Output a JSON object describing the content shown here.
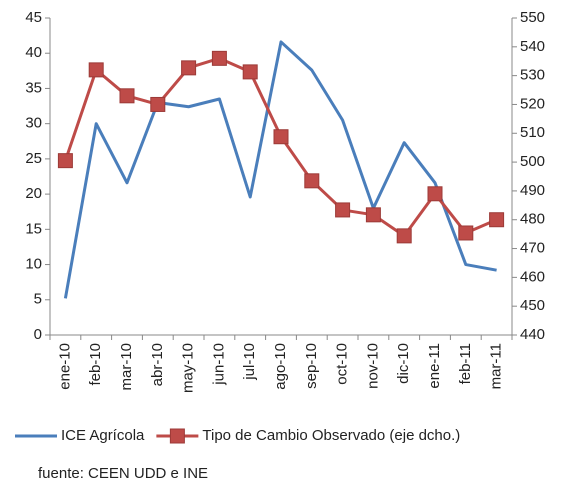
{
  "chart_data": {
    "type": "line",
    "categories": [
      "ene-10",
      "feb-10",
      "mar-10",
      "abr-10",
      "may-10",
      "jun-10",
      "jul-10",
      "ago-10",
      "sep-10",
      "oct-10",
      "nov-10",
      "dic-10",
      "ene-11",
      "feb-11",
      "mar-11"
    ],
    "series": [
      {
        "name": "ICE Agrícola",
        "color": "#4a7ebb",
        "values": [
          5.2,
          30,
          21.6,
          33,
          32.4,
          33.5,
          19.6,
          41.6,
          37.6,
          30.5,
          18,
          27.3,
          21.6,
          10,
          9.2
        ]
      },
      {
        "name": "Tipo de Cambio Observado (eje dcho.)",
        "color": "#be4b48",
        "axis": "y2",
        "values": [
          500.5,
          532,
          523,
          520,
          532.7,
          536,
          531.3,
          508.8,
          493.5,
          483.4,
          481.7,
          474.4,
          489,
          475.4,
          480
        ]
      }
    ],
    "ylim": [
      0,
      45
    ],
    "yticks": [
      0,
      5,
      10,
      15,
      20,
      25,
      30,
      35,
      40,
      45
    ],
    "y2lim": [
      440,
      550
    ],
    "y2ticks": [
      440,
      450,
      460,
      470,
      480,
      490,
      500,
      510,
      520,
      530,
      540,
      550
    ],
    "legend": "bottom",
    "note": "fuente: CEEN UDD e INE"
  }
}
